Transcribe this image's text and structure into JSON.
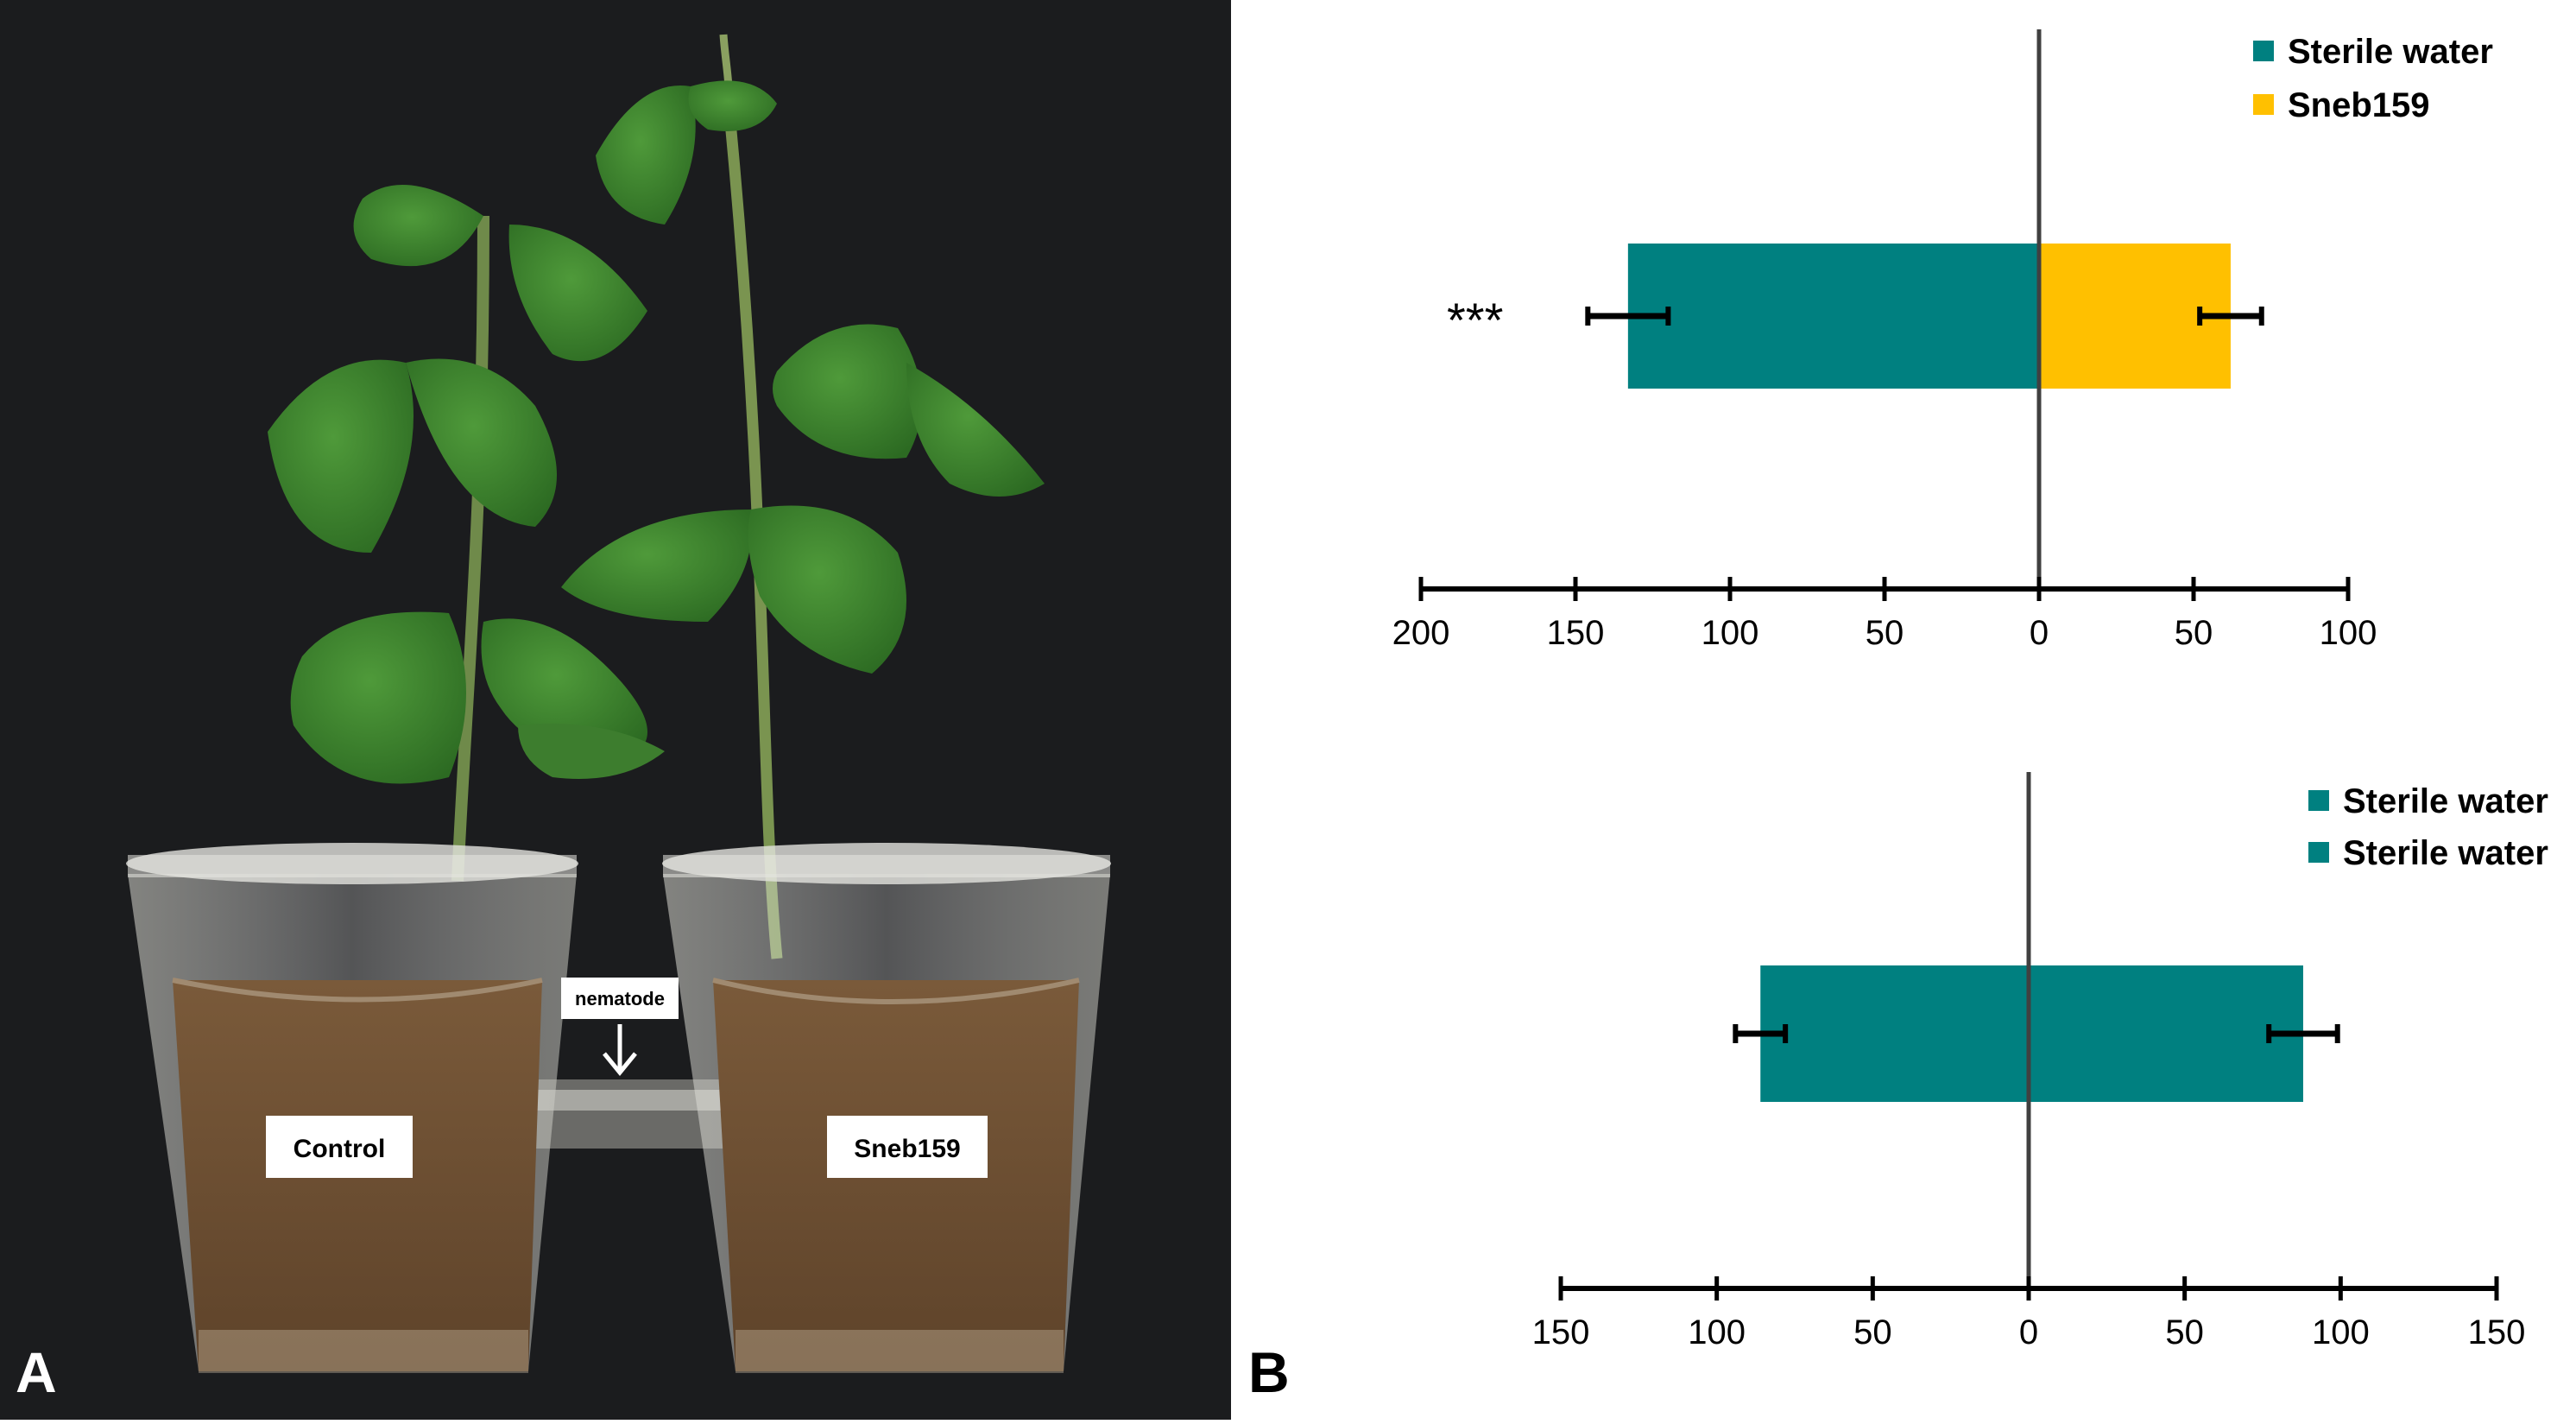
{
  "panel_a": {
    "letter": "A",
    "labels": {
      "left_cup": "Control",
      "right_cup": "Sneb159",
      "tube": "nematode"
    }
  },
  "panel_b": {
    "letter": "B"
  },
  "colors": {
    "teal": "#008080",
    "gold": "#FFC000",
    "axis": "#000000",
    "center_line": "#404040"
  },
  "chart_data": [
    {
      "type": "bar",
      "orientation": "horizontal-diverging",
      "legend": [
        "Sterile water",
        "Sneb159"
      ],
      "legend_position": "top-right",
      "series": [
        {
          "name": "Sterile water",
          "side": "left",
          "values": [
            133
          ],
          "error": [
            13
          ],
          "color": "#008080"
        },
        {
          "name": "Sneb159",
          "side": "right",
          "values": [
            62
          ],
          "error": [
            10
          ],
          "color": "#FFC000"
        }
      ],
      "annotation": "***",
      "xlim": [
        -200,
        100
      ],
      "ticks": [
        -200,
        -150,
        -100,
        -50,
        0,
        50,
        100
      ],
      "tick_labels": [
        "200",
        "150",
        "100",
        "50",
        "0",
        "50",
        "100"
      ],
      "grid": false
    },
    {
      "type": "bar",
      "orientation": "horizontal-diverging",
      "legend": [
        "Sterile water",
        "Sterile water"
      ],
      "legend_position": "top-right",
      "series": [
        {
          "name": "Sterile water",
          "side": "left",
          "values": [
            86
          ],
          "error": [
            8
          ],
          "color": "#008080"
        },
        {
          "name": "Sterile water",
          "side": "right",
          "values": [
            88
          ],
          "error": [
            11
          ],
          "color": "#008080"
        }
      ],
      "xlim": [
        -150,
        150
      ],
      "ticks": [
        -150,
        -100,
        -50,
        0,
        50,
        100,
        150
      ],
      "tick_labels": [
        "150",
        "100",
        "50",
        "0",
        "50",
        "100",
        "150"
      ],
      "grid": false
    }
  ]
}
